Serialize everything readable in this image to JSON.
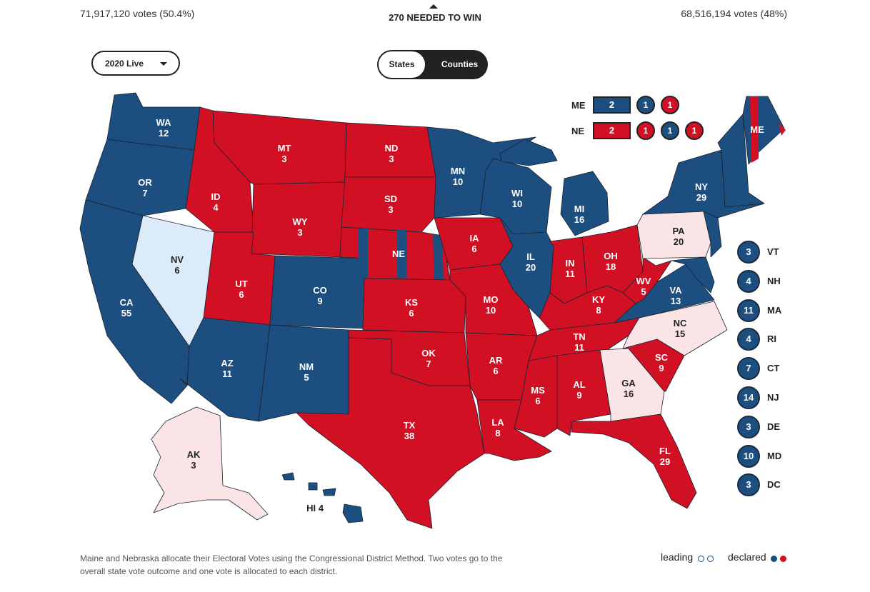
{
  "header": {
    "left_votes": "71,917,120 votes (50.4%)",
    "right_votes": "68,516,194 votes (48%)",
    "needed": "270 NEEDED TO WIN"
  },
  "controls": {
    "year": "2020 Live",
    "toggle_states": "States",
    "toggle_counties": "Counties"
  },
  "colors": {
    "dem": "#1c4f80",
    "rep": "#d11024",
    "dem_lean": "#dcebfa",
    "rep_lean": "#fbe4e6"
  },
  "states": [
    {
      "abbr": "WA",
      "ev": "12",
      "party": "dem"
    },
    {
      "abbr": "OR",
      "ev": "7",
      "party": "dem"
    },
    {
      "abbr": "CA",
      "ev": "55",
      "party": "dem"
    },
    {
      "abbr": "NV",
      "ev": "6",
      "party": "dem_lean"
    },
    {
      "abbr": "ID",
      "ev": "4",
      "party": "rep"
    },
    {
      "abbr": "MT",
      "ev": "3",
      "party": "rep"
    },
    {
      "abbr": "WY",
      "ev": "3",
      "party": "rep"
    },
    {
      "abbr": "UT",
      "ev": "6",
      "party": "rep"
    },
    {
      "abbr": "AZ",
      "ev": "11",
      "party": "dem"
    },
    {
      "abbr": "CO",
      "ev": "9",
      "party": "dem"
    },
    {
      "abbr": "NM",
      "ev": "5",
      "party": "dem"
    },
    {
      "abbr": "ND",
      "ev": "3",
      "party": "rep"
    },
    {
      "abbr": "SD",
      "ev": "3",
      "party": "rep"
    },
    {
      "abbr": "NE",
      "ev": "",
      "party": "rep"
    },
    {
      "abbr": "KS",
      "ev": "6",
      "party": "rep"
    },
    {
      "abbr": "OK",
      "ev": "7",
      "party": "rep"
    },
    {
      "abbr": "TX",
      "ev": "38",
      "party": "rep"
    },
    {
      "abbr": "MN",
      "ev": "10",
      "party": "dem"
    },
    {
      "abbr": "IA",
      "ev": "6",
      "party": "rep"
    },
    {
      "abbr": "MO",
      "ev": "10",
      "party": "rep"
    },
    {
      "abbr": "AR",
      "ev": "6",
      "party": "rep"
    },
    {
      "abbr": "LA",
      "ev": "8",
      "party": "rep"
    },
    {
      "abbr": "WI",
      "ev": "10",
      "party": "dem"
    },
    {
      "abbr": "IL",
      "ev": "20",
      "party": "dem"
    },
    {
      "abbr": "MI",
      "ev": "16",
      "party": "dem"
    },
    {
      "abbr": "IN",
      "ev": "11",
      "party": "rep"
    },
    {
      "abbr": "OH",
      "ev": "18",
      "party": "rep"
    },
    {
      "abbr": "KY",
      "ev": "8",
      "party": "rep"
    },
    {
      "abbr": "TN",
      "ev": "11",
      "party": "rep"
    },
    {
      "abbr": "MS",
      "ev": "6",
      "party": "rep"
    },
    {
      "abbr": "AL",
      "ev": "9",
      "party": "rep"
    },
    {
      "abbr": "GA",
      "ev": "16",
      "party": "rep_lean"
    },
    {
      "abbr": "FL",
      "ev": "29",
      "party": "rep"
    },
    {
      "abbr": "SC",
      "ev": "9",
      "party": "rep"
    },
    {
      "abbr": "NC",
      "ev": "15",
      "party": "rep_lean"
    },
    {
      "abbr": "VA",
      "ev": "13",
      "party": "dem"
    },
    {
      "abbr": "WV",
      "ev": "5",
      "party": "rep"
    },
    {
      "abbr": "PA",
      "ev": "20",
      "party": "rep_lean"
    },
    {
      "abbr": "NY",
      "ev": "29",
      "party": "dem"
    },
    {
      "abbr": "ME",
      "ev": "",
      "party": "dem"
    },
    {
      "abbr": "AK",
      "ev": "3",
      "party": "rep_lean"
    },
    {
      "abbr": "HI",
      "ev": "4",
      "party": "dem"
    }
  ],
  "district_split": {
    "ME": {
      "label": "ME",
      "statewide": "2",
      "statewide_party": "dem",
      "districts": [
        {
          "v": "1",
          "party": "dem"
        },
        {
          "v": "1",
          "party": "rep"
        }
      ]
    },
    "NE": {
      "label": "NE",
      "statewide": "2",
      "statewide_party": "rep",
      "districts": [
        {
          "v": "1",
          "party": "rep"
        },
        {
          "v": "1",
          "party": "dem"
        },
        {
          "v": "1",
          "party": "rep"
        }
      ]
    }
  },
  "small_states": [
    {
      "abbr": "VT",
      "ev": "3"
    },
    {
      "abbr": "NH",
      "ev": "4"
    },
    {
      "abbr": "MA",
      "ev": "11"
    },
    {
      "abbr": "RI",
      "ev": "4"
    },
    {
      "abbr": "CT",
      "ev": "7"
    },
    {
      "abbr": "NJ",
      "ev": "14"
    },
    {
      "abbr": "DE",
      "ev": "3"
    },
    {
      "abbr": "MD",
      "ev": "10"
    },
    {
      "abbr": "DC",
      "ev": "3"
    }
  ],
  "footnote": "Maine and Nebraska allocate their Electoral Votes using the Congressional District Method. Two votes go to the overall state vote outcome and one vote is allocated to each district.",
  "legend": {
    "leading": "leading",
    "declared": "declared"
  }
}
